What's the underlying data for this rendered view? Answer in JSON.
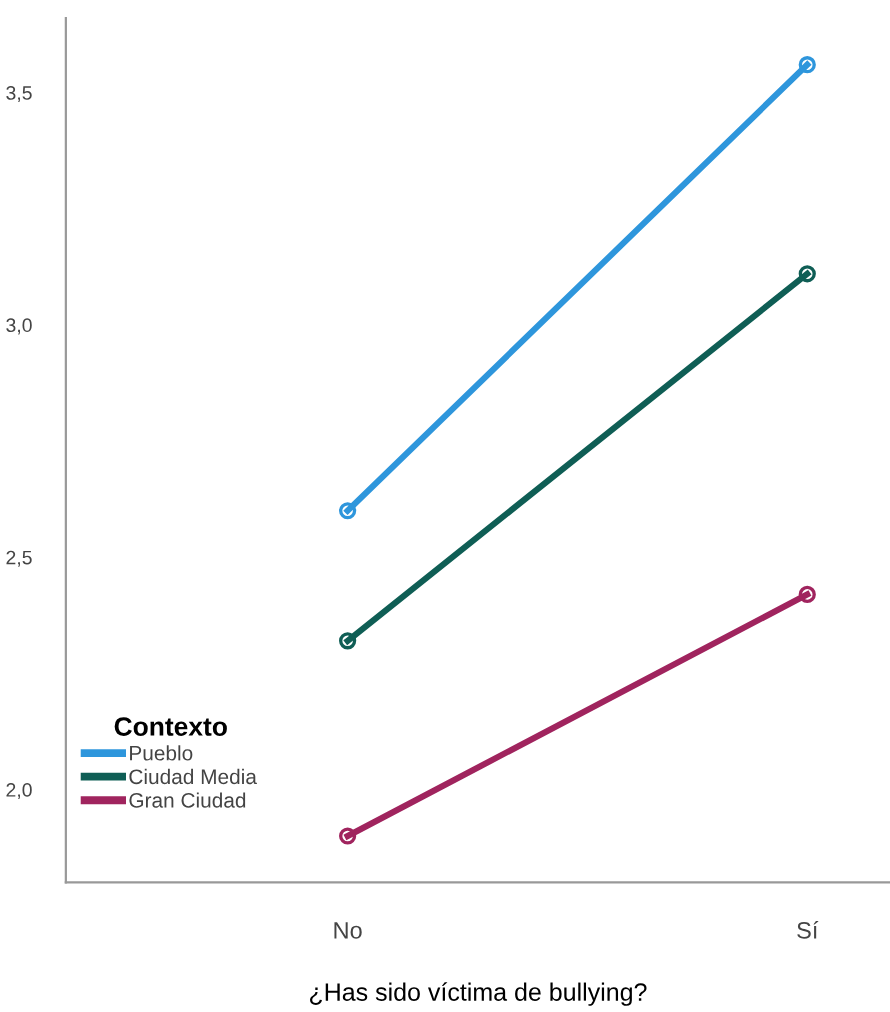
{
  "chart_data": {
    "type": "line",
    "xlabel": "¿Has sido víctima de bullying?",
    "legend_title": "Contexto",
    "categories": [
      "No",
      "Sí"
    ],
    "series": [
      {
        "name": "Pueblo",
        "color": "#2e96dc",
        "values": [
          2.6,
          3.56
        ]
      },
      {
        "name": "Ciudad Media",
        "color": "#0f5e55",
        "values": [
          2.32,
          3.11
        ]
      },
      {
        "name": "Gran Ciudad",
        "color": "#a0245e",
        "values": [
          1.9,
          2.42
        ]
      }
    ],
    "ylim": [
      1.8,
      3.66
    ],
    "yticks": [
      {
        "value": 2.0,
        "label": "2,0"
      },
      {
        "value": 2.5,
        "label": "2,5"
      },
      {
        "value": 3.0,
        "label": "3,0"
      },
      {
        "value": 3.5,
        "label": "3,5"
      }
    ],
    "marker": "circle",
    "line_style": "solid",
    "grid": false,
    "legend": "bottom left"
  }
}
